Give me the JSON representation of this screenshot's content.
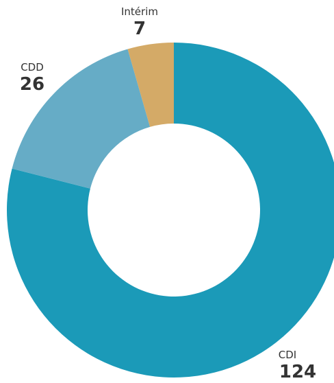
{
  "chart_data": {
    "type": "donut",
    "categories": [
      "CDI",
      "CDD",
      "Intérim"
    ],
    "values": [
      124,
      26,
      7
    ],
    "colors": [
      "#1b9ab8",
      "#66acc6",
      "#d4aa67"
    ]
  }
}
